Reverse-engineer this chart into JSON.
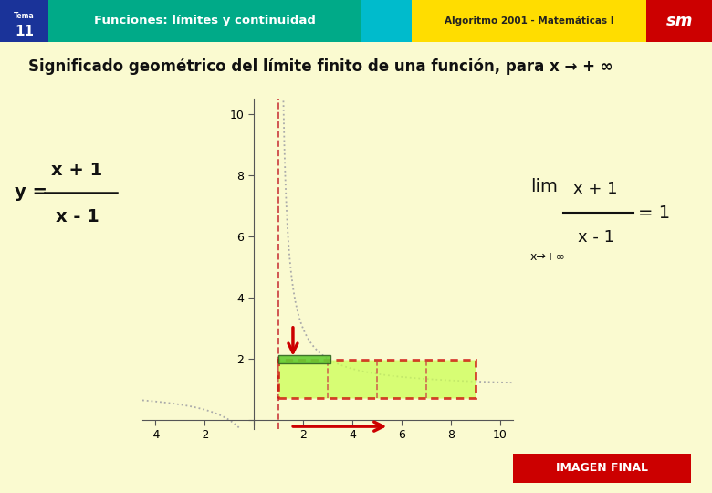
{
  "title": "Significado geométrico del límite finito de una función, para x → + ∞",
  "header_text": "Funciones: límites y continuidad",
  "header_sub": "Algoritmo 2001 - Matemáticas I",
  "tema_num": "11",
  "bg_color": "#fafad0",
  "header_blue_dark": "#1a3399",
  "header_green": "#00aa88",
  "header_cyan": "#00bbcc",
  "header_yellow": "#ffdd00",
  "header_red": "#cc0000",
  "sm_bg": "#cc0000",
  "border_color": "#888888",
  "curve_color": "#aaaaaa",
  "asymptote_color": "#cc4444",
  "rect_fill_color": "#ccff55",
  "rect_border_color": "#cc0000",
  "green_rect_color": "#44bb44",
  "arrow_color": "#cc0000",
  "xlim": [
    -4.5,
    10.5
  ],
  "ylim": [
    -0.3,
    10.5
  ]
}
